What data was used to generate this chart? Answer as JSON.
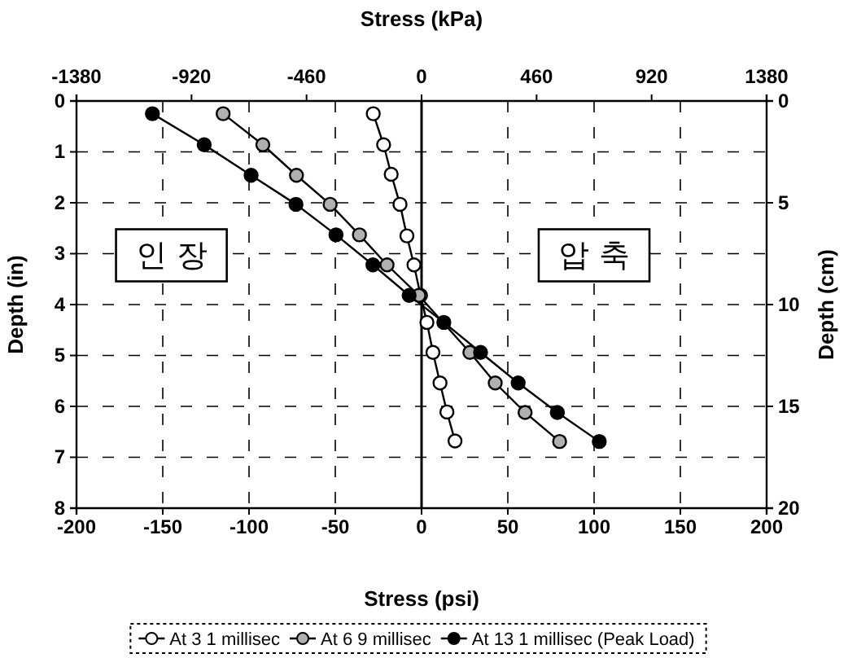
{
  "chart_data": {
    "type": "line",
    "xlabel": "Stress (psi)",
    "x2label": "Stress (kPa)",
    "ylabel": "Depth (in)",
    "y2label": "Depth (cm)",
    "xlim": [
      -200,
      200
    ],
    "xticks": [
      -200,
      -150,
      -100,
      -50,
      0,
      50,
      100,
      150,
      200
    ],
    "x2lim": [
      -1380,
      1380
    ],
    "x2ticks": [
      -1380,
      -920,
      -460,
      0,
      460,
      920,
      1380
    ],
    "ylim": [
      8,
      0
    ],
    "yticks": [
      0,
      1,
      2,
      3,
      4,
      5,
      6,
      7,
      8
    ],
    "y2lim": [
      20,
      0
    ],
    "y2ticks": [
      0,
      5,
      10,
      15,
      20
    ],
    "grid": true,
    "line_style": "solid",
    "marker": "circle",
    "legend": "bottom",
    "ref_lines": [
      {
        "axis": "x",
        "value": 0,
        "color": "#000000",
        "line_style": "solid"
      }
    ],
    "annotations": [
      "인 장",
      "압 축"
    ],
    "series": [
      {
        "name": "At 3 1 millisec",
        "color": "#000000",
        "x": [
          -28,
          -22,
          -17.6,
          -12.5,
          -8.5,
          -4.4,
          -0.6,
          3.1,
          6.6,
          10.7,
          14.7,
          19.4
        ],
        "values": [
          0.25,
          0.86,
          1.44,
          2.03,
          2.65,
          3.22,
          3.82,
          4.35,
          4.94,
          5.54,
          6.11,
          6.68
        ]
      },
      {
        "name": "At 6 9 millisec",
        "color": "#000000",
        "x": [
          -115,
          -92,
          -72.5,
          -53,
          -36,
          -20,
          -1.6,
          28,
          42.7,
          60,
          80
        ],
        "values": [
          0.25,
          0.86,
          1.46,
          2.03,
          2.63,
          3.22,
          3.82,
          4.94,
          5.54,
          6.12,
          6.69
        ]
      },
      {
        "name": "At 13 1 millisec (Peak Load)",
        "color": "#000000",
        "x": [
          -156,
          -126,
          -98.8,
          -72.8,
          -49.6,
          -28.2,
          -7.2,
          12.9,
          34.2,
          56,
          78.7,
          103
        ],
        "values": [
          0.25,
          0.86,
          1.46,
          2.03,
          2.63,
          3.22,
          3.82,
          4.35,
          4.94,
          5.54,
          6.12,
          6.69
        ]
      }
    ]
  }
}
